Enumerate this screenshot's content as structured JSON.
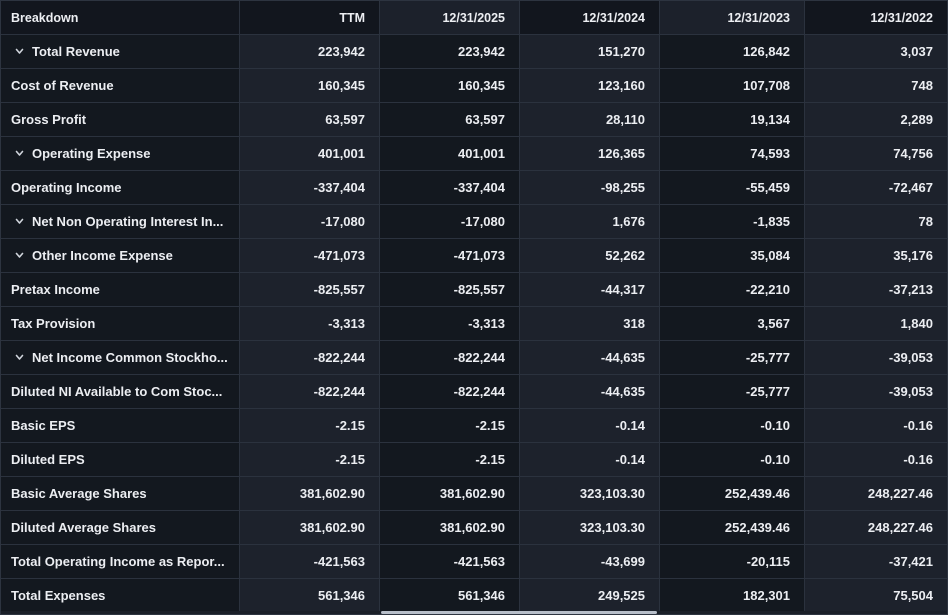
{
  "colors": {
    "cell_dark": "#13181f",
    "cell_light": "#1d222c",
    "border": "#2b323e",
    "text": "#eceef2",
    "scrollbar_thumb": "#b7bec9"
  },
  "table": {
    "header": [
      "Breakdown",
      "TTM",
      "12/31/2025",
      "12/31/2024",
      "12/31/2023",
      "12/31/2022"
    ],
    "rows": [
      {
        "label": "Total Revenue",
        "expandable": true,
        "values": [
          "223,942",
          "223,942",
          "151,270",
          "126,842",
          "3,037"
        ]
      },
      {
        "label": "Cost of Revenue",
        "expandable": false,
        "values": [
          "160,345",
          "160,345",
          "123,160",
          "107,708",
          "748"
        ]
      },
      {
        "label": "Gross Profit",
        "expandable": false,
        "values": [
          "63,597",
          "63,597",
          "28,110",
          "19,134",
          "2,289"
        ]
      },
      {
        "label": "Operating Expense",
        "expandable": true,
        "values": [
          "401,001",
          "401,001",
          "126,365",
          "74,593",
          "74,756"
        ]
      },
      {
        "label": "Operating Income",
        "expandable": false,
        "values": [
          "-337,404",
          "-337,404",
          "-98,255",
          "-55,459",
          "-72,467"
        ]
      },
      {
        "label": "Net Non Operating Interest In...",
        "expandable": true,
        "values": [
          "-17,080",
          "-17,080",
          "1,676",
          "-1,835",
          "78"
        ]
      },
      {
        "label": "Other Income Expense",
        "expandable": true,
        "values": [
          "-471,073",
          "-471,073",
          "52,262",
          "35,084",
          "35,176"
        ]
      },
      {
        "label": "Pretax Income",
        "expandable": false,
        "values": [
          "-825,557",
          "-825,557",
          "-44,317",
          "-22,210",
          "-37,213"
        ]
      },
      {
        "label": "Tax Provision",
        "expandable": false,
        "values": [
          "-3,313",
          "-3,313",
          "318",
          "3,567",
          "1,840"
        ]
      },
      {
        "label": "Net Income Common Stockho...",
        "expandable": true,
        "values": [
          "-822,244",
          "-822,244",
          "-44,635",
          "-25,777",
          "-39,053"
        ]
      },
      {
        "label": "Diluted NI Available to Com Stoc...",
        "expandable": false,
        "values": [
          "-822,244",
          "-822,244",
          "-44,635",
          "-25,777",
          "-39,053"
        ]
      },
      {
        "label": "Basic EPS",
        "expandable": false,
        "values": [
          "-2.15",
          "-2.15",
          "-0.14",
          "-0.10",
          "-0.16"
        ]
      },
      {
        "label": "Diluted EPS",
        "expandable": false,
        "values": [
          "-2.15",
          "-2.15",
          "-0.14",
          "-0.10",
          "-0.16"
        ]
      },
      {
        "label": "Basic Average Shares",
        "expandable": false,
        "values": [
          "381,602.90",
          "381,602.90",
          "323,103.30",
          "252,439.46",
          "248,227.46"
        ]
      },
      {
        "label": "Diluted Average Shares",
        "expandable": false,
        "values": [
          "381,602.90",
          "381,602.90",
          "323,103.30",
          "252,439.46",
          "248,227.46"
        ]
      },
      {
        "label": "Total Operating Income as Repor...",
        "expandable": false,
        "values": [
          "-421,563",
          "-421,563",
          "-43,699",
          "-20,115",
          "-37,421"
        ]
      },
      {
        "label": "Total Expenses",
        "expandable": false,
        "values": [
          "561,346",
          "561,346",
          "249,525",
          "182,301",
          "75,504"
        ]
      }
    ]
  },
  "icons": {
    "chevron_down": "expand/collapse chevron"
  }
}
